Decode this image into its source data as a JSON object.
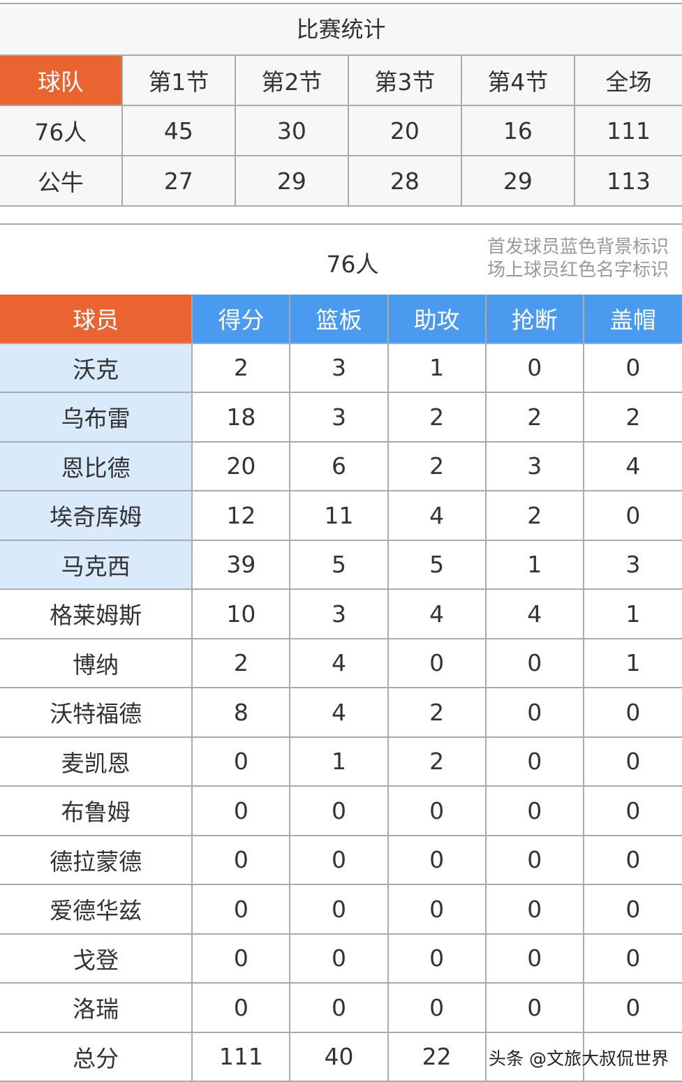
{
  "quarter_table": {
    "title": "比赛统计",
    "headers": [
      "球队",
      "第1节",
      "第2节",
      "第3节",
      "第4节",
      "全场"
    ],
    "rows": [
      [
        "76人",
        "45",
        "30",
        "20",
        "16",
        "111"
      ],
      [
        "公牛",
        "27",
        "29",
        "28",
        "29",
        "113"
      ]
    ]
  },
  "player_table": {
    "team": "76人",
    "note": [
      "首发球员蓝色背景标识",
      "场上球员红色名字标识"
    ],
    "headers": [
      "球员",
      "得分",
      "篮板",
      "助攻",
      "抢断",
      "盖帽"
    ],
    "rows": [
      {
        "name": "沃克",
        "starter": true,
        "stats": [
          "2",
          "3",
          "1",
          "0",
          "0"
        ]
      },
      {
        "name": "乌布雷",
        "starter": true,
        "stats": [
          "18",
          "3",
          "2",
          "2",
          "2"
        ]
      },
      {
        "name": "恩比德",
        "starter": true,
        "stats": [
          "20",
          "6",
          "2",
          "3",
          "4"
        ]
      },
      {
        "name": "埃奇库姆",
        "starter": true,
        "stats": [
          "12",
          "11",
          "4",
          "2",
          "0"
        ]
      },
      {
        "name": "马克西",
        "starter": true,
        "stats": [
          "39",
          "5",
          "5",
          "1",
          "3"
        ]
      },
      {
        "name": "格莱姆斯",
        "starter": false,
        "stats": [
          "10",
          "3",
          "4",
          "4",
          "1"
        ]
      },
      {
        "name": "博纳",
        "starter": false,
        "stats": [
          "2",
          "4",
          "0",
          "0",
          "1"
        ]
      },
      {
        "name": "沃特福德",
        "starter": false,
        "stats": [
          "8",
          "4",
          "2",
          "0",
          "0"
        ]
      },
      {
        "name": "麦凯恩",
        "starter": false,
        "stats": [
          "0",
          "1",
          "2",
          "0",
          "0"
        ]
      },
      {
        "name": "布鲁姆",
        "starter": false,
        "stats": [
          "0",
          "0",
          "0",
          "0",
          "0"
        ]
      },
      {
        "name": "德拉蒙德",
        "starter": false,
        "stats": [
          "0",
          "0",
          "0",
          "0",
          "0"
        ]
      },
      {
        "name": "爱德华兹",
        "starter": false,
        "stats": [
          "0",
          "0",
          "0",
          "0",
          "0"
        ]
      },
      {
        "name": "戈登",
        "starter": false,
        "stats": [
          "0",
          "0",
          "0",
          "0",
          "0"
        ]
      },
      {
        "name": "洛瑞",
        "starter": false,
        "stats": [
          "0",
          "0",
          "0",
          "0",
          "0"
        ]
      },
      {
        "name": "总分",
        "starter": false,
        "stats": [
          "111",
          "40",
          "22",
          "",
          ""
        ]
      }
    ]
  },
  "watermark": "头条 @文旅大叔侃世界",
  "colors": {
    "orange": "#e96430",
    "blue": "#4a9af0",
    "starter_bg": "#d9eafb"
  }
}
